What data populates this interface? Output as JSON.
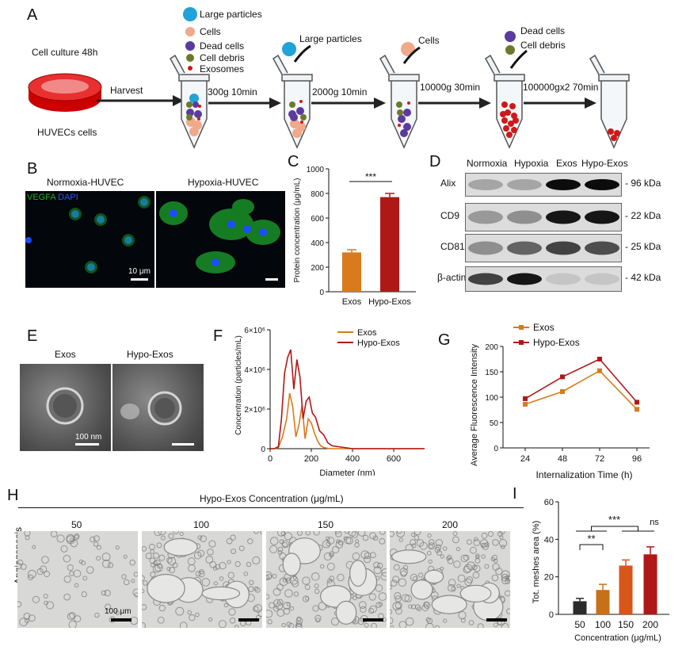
{
  "panels": {
    "A": "A",
    "B": "B",
    "C": "C",
    "D": "D",
    "E": "E",
    "F": "F",
    "G": "G",
    "H": "H",
    "I": "I"
  },
  "panelA": {
    "culture_label": "Cell culture 48h",
    "cells_label": "HUVECs cells",
    "harvest": "Harvest",
    "legend": [
      "Large particles",
      "Cells",
      "Dead cells",
      "Cell debris",
      "Exosomes"
    ],
    "steps": [
      "300g 10min",
      "2000g 10min",
      "10000g 30min",
      "100000gx2 70min"
    ],
    "removed": [
      "Large particles",
      "Cells",
      "Dead cells",
      "Cell debris"
    ],
    "colors": {
      "large": "#1fa3d8",
      "cells": "#f0a98a",
      "dead": "#5b3b9e",
      "debris": "#6b7a2a",
      "exo": "#d01818"
    }
  },
  "panelB": {
    "left_title": "Normoxia-HUVEC",
    "right_title": "Hypoxia-HUVEC",
    "stain1": "VEGFA",
    "stain2": "DAPI",
    "scale": "10 μm"
  },
  "panelC": {
    "sig": "***",
    "chart_data": {
      "type": "bar",
      "categories": [
        "Exos",
        "Hypo-Exos"
      ],
      "values": [
        320,
        770
      ],
      "errors": [
        22,
        30
      ],
      "colors": [
        "#d97a1c",
        "#b01818"
      ],
      "ylabel": "Protein concentration (μg/mL)",
      "ylim": [
        0,
        1000
      ],
      "yticks": [
        0,
        200,
        400,
        600,
        800,
        1000
      ]
    }
  },
  "panelD": {
    "columns": [
      "Normoxia",
      "Hypoxia",
      "Exos",
      "Hypo-Exos"
    ],
    "rows": [
      {
        "name": "Alix",
        "size": "- 96 kDa"
      },
      {
        "name": "CD9",
        "size": "- 22 kDa"
      },
      {
        "name": "CD81",
        "size": "- 25 kDa"
      },
      {
        "name": "β-actin",
        "size": "- 42 kDa"
      }
    ]
  },
  "panelE": {
    "left": "Exos",
    "right": "Hypo-Exos",
    "scale": "100 nm"
  },
  "panelF": {
    "chart_data": {
      "type": "line",
      "xlabel": "Diameter (nm)",
      "ylabel": "Concentration (particles/mL)",
      "xlim": [
        0,
        750
      ],
      "xticks": [
        0,
        200,
        400,
        600
      ],
      "ylim": [
        0,
        6000000
      ],
      "ytick_labels": [
        "0",
        "2×10⁶",
        "4×10⁶",
        "6×10⁶"
      ],
      "yticks": [
        0,
        2000000,
        4000000,
        6000000
      ],
      "series": [
        {
          "name": "Exos",
          "color": "#d97a1c",
          "x": [
            0,
            20,
            40,
            60,
            80,
            95,
            110,
            125,
            140,
            155,
            170,
            185,
            200,
            215,
            230,
            245,
            260,
            280,
            300,
            330,
            400,
            750
          ],
          "y": [
            0,
            0,
            50000,
            600000,
            1500000,
            2800000,
            2100000,
            600000,
            1200000,
            2200000,
            500000,
            1500000,
            1300000,
            800000,
            400000,
            150000,
            60000,
            20000,
            0,
            0,
            0,
            0
          ]
        },
        {
          "name": "Hypo-Exos",
          "color": "#b01818",
          "x": [
            0,
            20,
            40,
            55,
            70,
            85,
            100,
            115,
            130,
            145,
            160,
            175,
            190,
            205,
            220,
            240,
            260,
            280,
            300,
            330,
            360,
            400,
            750
          ],
          "y": [
            0,
            0,
            100000,
            1500000,
            3800000,
            4600000,
            5000000,
            3000000,
            4500000,
            3600000,
            1500000,
            2400000,
            2600000,
            1800000,
            1600000,
            900000,
            700000,
            300000,
            150000,
            100000,
            60000,
            0,
            0
          ]
        }
      ]
    }
  },
  "panelG": {
    "chart_data": {
      "type": "line",
      "xlabel": "Internalization Time (h)",
      "ylabel": "Average Fluorescence Intensity",
      "categories": [
        "24",
        "48",
        "72",
        "96"
      ],
      "ylim": [
        0,
        200
      ],
      "yticks": [
        0,
        50,
        100,
        150,
        200
      ],
      "series": [
        {
          "name": "Exos",
          "color": "#d97a1c",
          "values": [
            86,
            111,
            152,
            76
          ]
        },
        {
          "name": "Hypo-Exos",
          "color": "#b01818",
          "values": [
            97,
            140,
            175,
            90
          ]
        }
      ]
    }
  },
  "panelH": {
    "title": "Hypo-Exos Concentration (μg/mL)",
    "row_label": "Angiogenesis",
    "concentrations": [
      "50",
      "100",
      "150",
      "200"
    ],
    "scale": "100 μm"
  },
  "panelI": {
    "sig_a": "**",
    "sig_b": "***",
    "sig_c": "ns",
    "chart_data": {
      "type": "bar",
      "categories": [
        "50",
        "100",
        "150",
        "200"
      ],
      "values": [
        7,
        13,
        26,
        32
      ],
      "errors": [
        1.5,
        3,
        3,
        4
      ],
      "colors": [
        "#2b2b2b",
        "#c6701a",
        "#d9561a",
        "#b01818"
      ],
      "ylabel": "Tot. meshes area (%)",
      "xlabel": "Concentration (μg/mL)",
      "ylim": [
        0,
        60
      ],
      "yticks": [
        0,
        20,
        40,
        60
      ]
    }
  }
}
